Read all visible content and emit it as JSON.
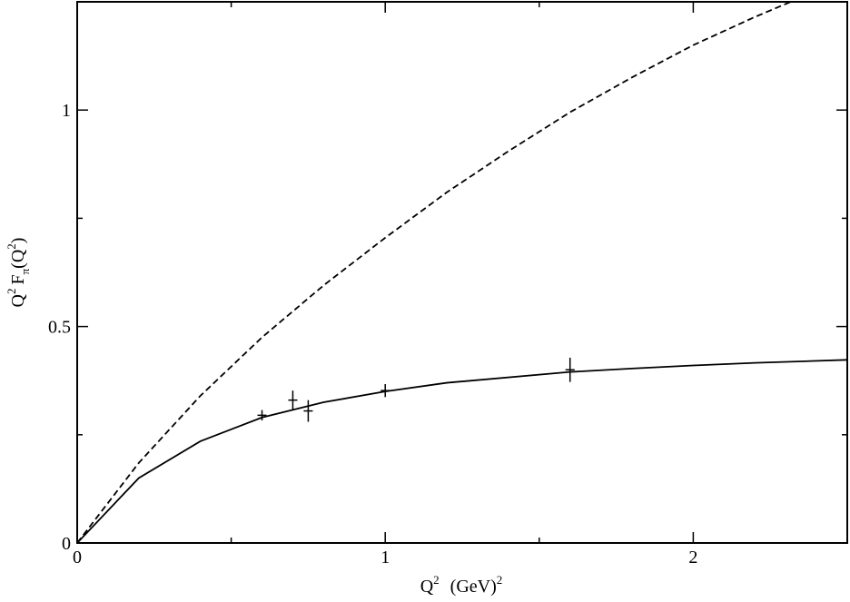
{
  "chart_data": {
    "type": "line",
    "title": "",
    "xlabel": {
      "q": "Q",
      "sup": "2",
      "unit": "(GeV)",
      "unit_sup": "2"
    },
    "ylabel": {
      "q": "Q",
      "q_sup": "2",
      "f": "F",
      "f_sub": "π",
      "open": "(Q",
      "arg_sup": "2",
      "close": ")"
    },
    "xlim": [
      0,
      2.5
    ],
    "ylim": [
      0,
      1.25
    ],
    "x_major_ticks": [
      0,
      1,
      2
    ],
    "x_minor_ticks": [
      0.5,
      1.5
    ],
    "x_tick_labels": [
      "0",
      "1",
      "2"
    ],
    "y_major_ticks": [
      0,
      0.5,
      1
    ],
    "y_minor_ticks": [
      0.25,
      0.75
    ],
    "y_tick_labels": [
      "0",
      "0.5",
      "1"
    ],
    "grid": false,
    "legend": "none",
    "series": [
      {
        "style": "dashed",
        "color": "#000000",
        "x": [
          0,
          0.2,
          0.4,
          0.6,
          0.8,
          1.0,
          1.2,
          1.4,
          1.6,
          1.8,
          2.0,
          2.2,
          2.4
        ],
        "y": [
          0,
          0.185,
          0.34,
          0.475,
          0.595,
          0.705,
          0.81,
          0.905,
          0.995,
          1.075,
          1.15,
          1.215,
          1.275
        ]
      },
      {
        "style": "solid",
        "color": "#000000",
        "x": [
          0,
          0.2,
          0.4,
          0.6,
          0.8,
          1.0,
          1.2,
          1.6,
          1.8,
          2.0,
          2.2,
          2.5
        ],
        "y": [
          0,
          0.15,
          0.235,
          0.29,
          0.325,
          0.35,
          0.37,
          0.395,
          0.403,
          0.41,
          0.416,
          0.423
        ]
      }
    ],
    "points": {
      "marker": "plus",
      "x": [
        0.6,
        0.7,
        0.75,
        1.0,
        1.6
      ],
      "y": [
        0.295,
        0.33,
        0.305,
        0.352,
        0.4
      ],
      "err": [
        0.012,
        0.022,
        0.025,
        0.015,
        0.028
      ]
    }
  }
}
